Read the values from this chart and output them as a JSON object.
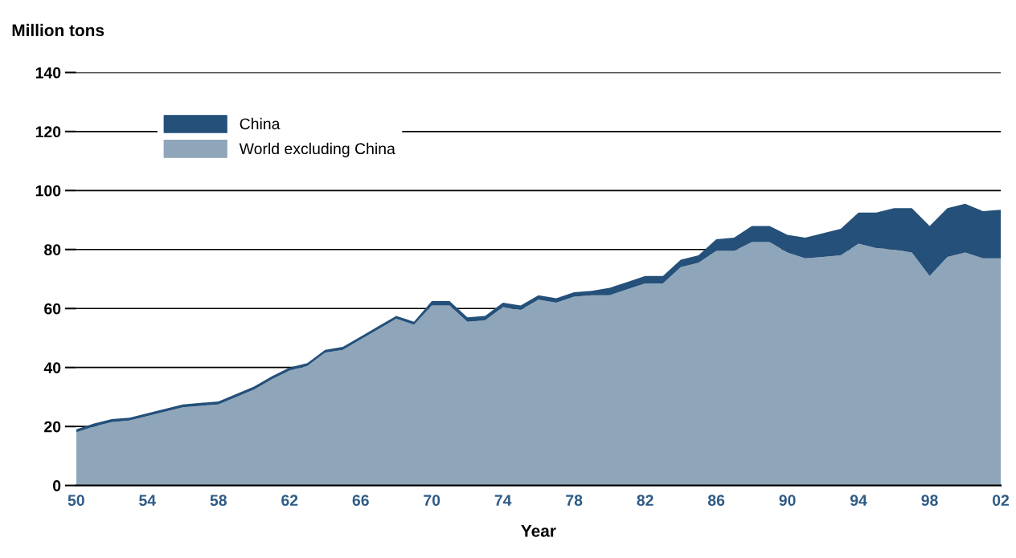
{
  "chart_data": {
    "type": "area",
    "stacked": true,
    "ylabel": "Million tons",
    "xlabel": "Year",
    "x": [
      1950,
      1951,
      1952,
      1953,
      1954,
      1955,
      1956,
      1957,
      1958,
      1959,
      1960,
      1961,
      1962,
      1963,
      1964,
      1965,
      1966,
      1967,
      1968,
      1969,
      1970,
      1971,
      1972,
      1973,
      1974,
      1975,
      1976,
      1977,
      1978,
      1979,
      1980,
      1981,
      1982,
      1983,
      1984,
      1985,
      1986,
      1987,
      1988,
      1989,
      1990,
      1991,
      1992,
      1993,
      1994,
      1995,
      1996,
      1997,
      1998,
      1999,
      2000,
      2001,
      2002
    ],
    "series": [
      {
        "name": "World excluding China",
        "color": "#8fa6ba",
        "values": [
          18,
          20,
          21.5,
          22,
          23.5,
          25,
          26.5,
          27,
          27.5,
          30,
          32.5,
          36,
          39,
          40.5,
          45,
          46,
          49.5,
          53,
          56.5,
          54.5,
          61,
          61,
          55.5,
          56,
          60.5,
          59.5,
          63,
          62,
          64,
          64.5,
          64.5,
          66.5,
          68.5,
          68.5,
          74,
          75.5,
          79.5,
          79.5,
          82.5,
          82.5,
          79,
          77,
          77.5,
          78,
          82,
          80.5,
          80,
          79,
          71,
          77.5,
          79,
          77,
          77
        ]
      },
      {
        "name": "China",
        "color": "#24507a",
        "values": [
          1,
          1,
          1,
          1,
          1,
          1,
          1,
          1,
          1,
          1,
          1,
          1,
          1,
          1,
          1,
          1,
          1,
          1,
          1,
          1,
          1.5,
          1.5,
          1.5,
          1.5,
          1.5,
          1.5,
          1.5,
          1.5,
          1.5,
          1.5,
          2.5,
          2.5,
          2.5,
          2.5,
          2.5,
          2.5,
          4,
          4.5,
          5.5,
          5.5,
          6,
          7,
          8,
          9,
          10.5,
          12,
          14,
          15,
          17,
          16.5,
          16.5,
          16,
          16.5
        ]
      }
    ],
    "xlim": [
      1950,
      2002
    ],
    "xticks": [
      {
        "value": 1950,
        "label": "50"
      },
      {
        "value": 1954,
        "label": "54"
      },
      {
        "value": 1958,
        "label": "58"
      },
      {
        "value": 1962,
        "label": "62"
      },
      {
        "value": 1966,
        "label": "66"
      },
      {
        "value": 1970,
        "label": "70"
      },
      {
        "value": 1974,
        "label": "74"
      },
      {
        "value": 1978,
        "label": "78"
      },
      {
        "value": 1982,
        "label": "82"
      },
      {
        "value": 1986,
        "label": "86"
      },
      {
        "value": 1990,
        "label": "90"
      },
      {
        "value": 1994,
        "label": "94"
      },
      {
        "value": 1998,
        "label": "98"
      },
      {
        "value": 2002,
        "label": "02"
      }
    ],
    "ylim": [
      0,
      140
    ],
    "yticks": [
      0,
      20,
      40,
      60,
      80,
      100,
      120,
      140
    ],
    "grid": "y",
    "legend": "top left"
  }
}
